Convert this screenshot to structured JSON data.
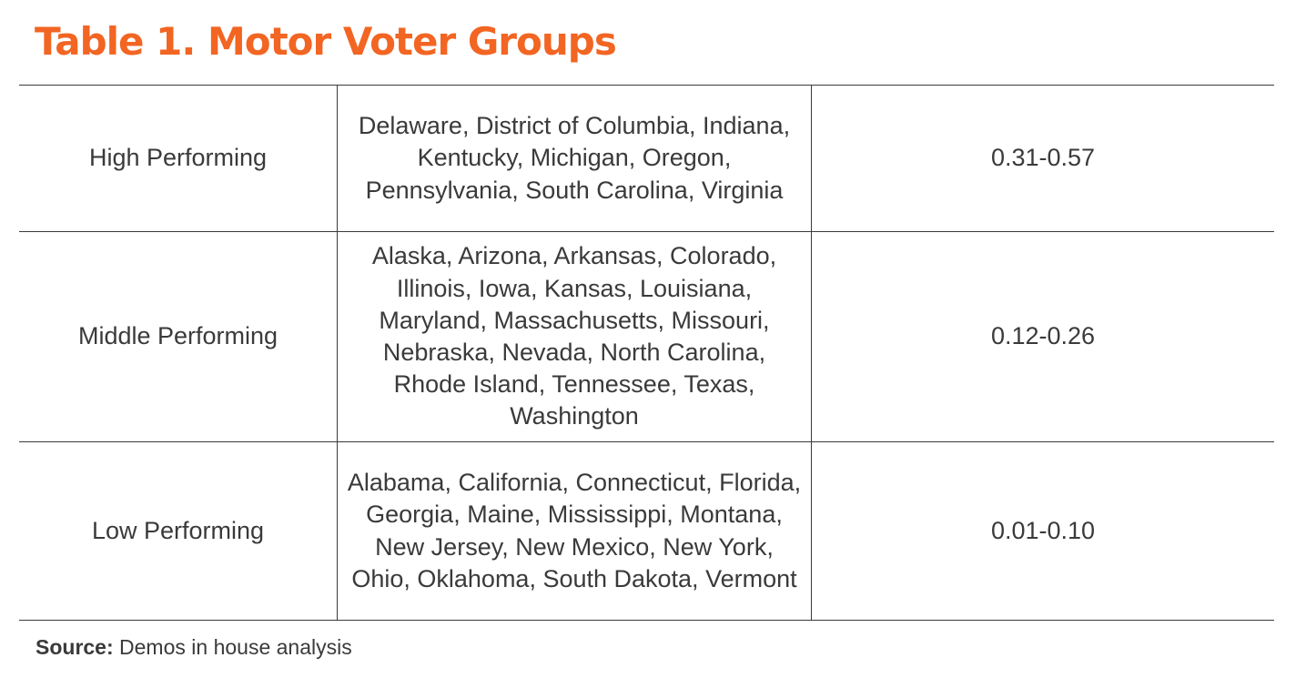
{
  "title": "Table 1. Motor Voter Groups",
  "accent_color": "#f26522",
  "text_color": "#3a3a3a",
  "rows": [
    {
      "group": "High Performing",
      "states": "Delaware, District of Columbia, Indiana, Kentucky, Michigan, Oregon, Pennsylvania, South Carolina, Virginia",
      "range": "0.31-0.57"
    },
    {
      "group": "Middle Performing",
      "states": "Alaska, Arizona, Arkansas, Colorado, Illinois, Iowa, Kansas, Louisiana, Maryland, Massachusetts, Missouri, Nebraska, Nevada, North Carolina, Rhode Island, Tennessee, Texas, Washington",
      "range": "0.12-0.26"
    },
    {
      "group": "Low Performing",
      "states": "Alabama, California, Connecticut, Florida, Georgia, Maine, Mississippi, Montana, New Jersey, New Mexico, New York, Ohio, Oklahoma, South Dakota, Vermont",
      "range": "0.01-0.10"
    }
  ],
  "source": {
    "label": "Source:",
    "text": " Demos in house analysis"
  }
}
